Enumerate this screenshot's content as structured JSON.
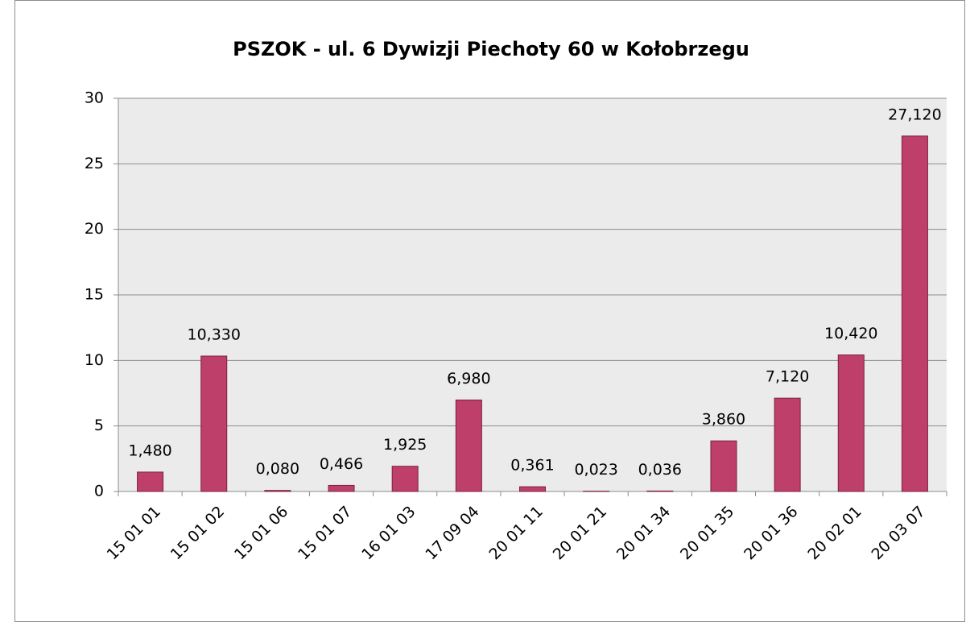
{
  "chart_data": {
    "type": "bar",
    "title": "PSZOK - ul. 6 Dywizji Piechoty 60 w Kołobrzegu",
    "categories": [
      "15 01 01",
      "15 01 02",
      "15 01 06",
      "15 01 07",
      "16 01 03",
      "17 09 04",
      "20 01 11",
      "20 01 21",
      "20 01 34",
      "20 01 35",
      "20 01 36",
      "20 02 01",
      "20 03 07"
    ],
    "values": [
      1.48,
      10.33,
      0.08,
      0.466,
      1.925,
      6.98,
      0.361,
      0.023,
      0.036,
      3.86,
      7.12,
      10.42,
      27.12
    ],
    "value_labels": [
      "1,480",
      "10,330",
      "0,080",
      "0,466",
      "1,925",
      "6,980",
      "0,361",
      "0,023",
      "0,036",
      "3,860",
      "7,120",
      "10,420",
      "27,120"
    ],
    "color": "#be3f6a",
    "ylim": [
      0,
      30
    ],
    "yticks": [
      0,
      5,
      10,
      15,
      20,
      25,
      30
    ],
    "grid": true
  }
}
